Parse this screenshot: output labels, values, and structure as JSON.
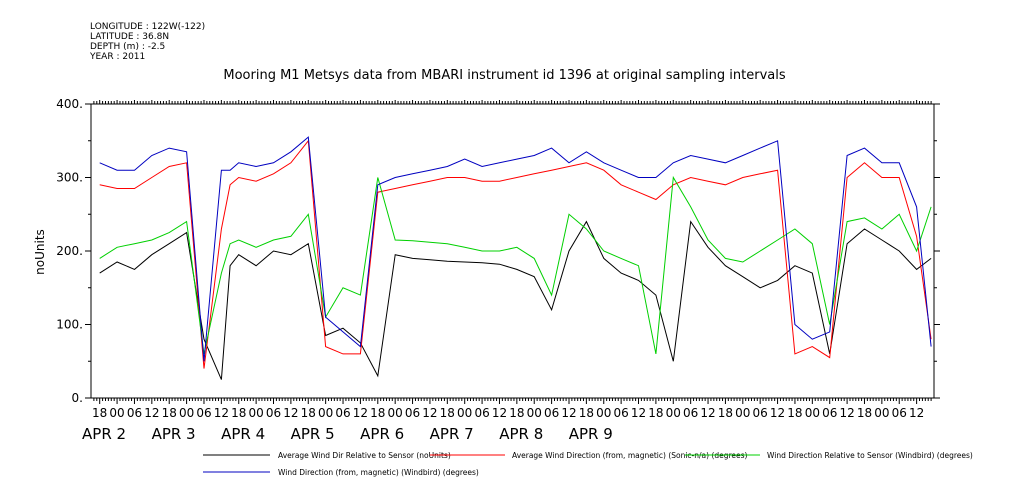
{
  "meta": {
    "longitude": "LONGITUDE : 122W(-122)",
    "latitude": "LATITUDE : 36.8N",
    "depth": "DEPTH (m) : -2.5",
    "year": "YEAR : 2011"
  },
  "chart_data": {
    "type": "line",
    "title": "Mooring M1 Metsys data from MBARI instrument id 1396 at original sampling intervals",
    "ylabel": "noUnits",
    "xlabel": "",
    "ylim": [
      0,
      400
    ],
    "yticks": [
      "0.",
      "100.",
      "200.",
      "300.",
      "400."
    ],
    "hour_labels": [
      "18",
      "00",
      "06",
      "12",
      "18",
      "00",
      "06",
      "12",
      "18",
      "00",
      "06",
      "12",
      "18",
      "00",
      "06",
      "12",
      "18",
      "00",
      "06",
      "12",
      "18",
      "00",
      "06",
      "12",
      "18",
      "00",
      "06",
      "12",
      "18",
      "00",
      "06",
      "12",
      "18",
      "00",
      "06",
      "12",
      "18",
      "00",
      "06",
      "12",
      "18",
      "00",
      "06",
      "12",
      "18",
      "00",
      "06",
      "12"
    ],
    "day_labels": [
      "APR  2",
      "APR  3",
      "APR  4",
      "APR  5",
      "APR  6",
      "APR  7",
      "APR  8",
      "APR  9"
    ],
    "x_unit": "hours since APR 1 18:00",
    "series": [
      {
        "name": "Average Wind Dir Relative to Sensor (noUnits)",
        "color": "#000000",
        "x": [
          0,
          6,
          12,
          18,
          24,
          30,
          36,
          42,
          45,
          48,
          54,
          60,
          66,
          72,
          78,
          84,
          90,
          96,
          102,
          108,
          114,
          120,
          126,
          132,
          138,
          144,
          150,
          156,
          162,
          168,
          174,
          180,
          186,
          192,
          198,
          204,
          210,
          216,
          222,
          228,
          234,
          240,
          246,
          252,
          258,
          264,
          270,
          276,
          282,
          287
        ],
        "y": [
          170,
          185,
          175,
          195,
          210,
          225,
          80,
          25,
          180,
          195,
          180,
          200,
          195,
          210,
          85,
          95,
          75,
          30,
          195,
          190,
          188,
          186,
          185,
          184,
          182,
          175,
          165,
          120,
          200,
          240,
          190,
          170,
          160,
          140,
          50,
          240,
          205,
          180,
          165,
          150,
          160,
          180,
          170,
          60,
          210,
          230,
          215,
          200,
          175,
          190
        ]
      },
      {
        "name": "Average Wind Direction (from, magnetic) (Sonic-n/a) (degrees)",
        "color": "#ff0000",
        "x": [
          0,
          6,
          12,
          18,
          24,
          30,
          36,
          42,
          45,
          48,
          54,
          60,
          66,
          72,
          78,
          84,
          90,
          96,
          102,
          108,
          114,
          120,
          126,
          132,
          138,
          144,
          150,
          156,
          162,
          168,
          174,
          180,
          186,
          192,
          198,
          204,
          210,
          216,
          222,
          228,
          234,
          240,
          246,
          252,
          258,
          264,
          270,
          276,
          282,
          287
        ],
        "y": [
          290,
          285,
          285,
          300,
          315,
          320,
          40,
          230,
          290,
          300,
          295,
          305,
          320,
          350,
          70,
          60,
          60,
          280,
          285,
          290,
          295,
          300,
          300,
          295,
          295,
          300,
          305,
          310,
          315,
          320,
          310,
          290,
          280,
          270,
          290,
          300,
          295,
          290,
          300,
          305,
          310,
          60,
          70,
          55,
          300,
          320,
          300,
          300,
          220,
          80
        ]
      },
      {
        "name": "Wind Direction Relative to Sensor (Windbird) (degrees)",
        "color": "#00d000",
        "x": [
          0,
          6,
          12,
          18,
          24,
          30,
          36,
          42,
          45,
          48,
          54,
          60,
          66,
          72,
          78,
          84,
          90,
          96,
          102,
          108,
          114,
          120,
          126,
          132,
          138,
          144,
          150,
          156,
          162,
          168,
          174,
          180,
          186,
          192,
          198,
          204,
          210,
          216,
          222,
          228,
          234,
          240,
          246,
          252,
          258,
          264,
          270,
          276,
          282,
          287
        ],
        "y": [
          190,
          205,
          210,
          215,
          225,
          240,
          60,
          170,
          210,
          215,
          205,
          215,
          220,
          250,
          110,
          150,
          140,
          300,
          215,
          214,
          212,
          210,
          205,
          200,
          200,
          205,
          190,
          140,
          250,
          230,
          200,
          190,
          180,
          60,
          300,
          260,
          215,
          190,
          185,
          200,
          215,
          230,
          210,
          100,
          240,
          245,
          230,
          250,
          200,
          260
        ]
      },
      {
        "name": "Wind Direction (from, magnetic) (Windbird) (degrees)",
        "color": "#0000c0",
        "x": [
          0,
          6,
          12,
          18,
          24,
          30,
          36,
          42,
          45,
          48,
          54,
          60,
          66,
          72,
          78,
          84,
          90,
          96,
          102,
          108,
          114,
          120,
          126,
          132,
          138,
          144,
          150,
          156,
          162,
          168,
          174,
          180,
          186,
          192,
          198,
          204,
          210,
          216,
          222,
          228,
          234,
          240,
          246,
          252,
          258,
          264,
          270,
          276,
          282,
          287
        ],
        "y": [
          320,
          310,
          310,
          330,
          340,
          335,
          50,
          310,
          310,
          320,
          315,
          320,
          335,
          355,
          110,
          90,
          70,
          290,
          300,
          305,
          310,
          315,
          325,
          315,
          320,
          325,
          330,
          340,
          320,
          335,
          320,
          310,
          300,
          300,
          320,
          330,
          325,
          320,
          330,
          340,
          350,
          100,
          80,
          90,
          330,
          340,
          320,
          320,
          260,
          70
        ]
      }
    ],
    "legend": "bottom"
  }
}
